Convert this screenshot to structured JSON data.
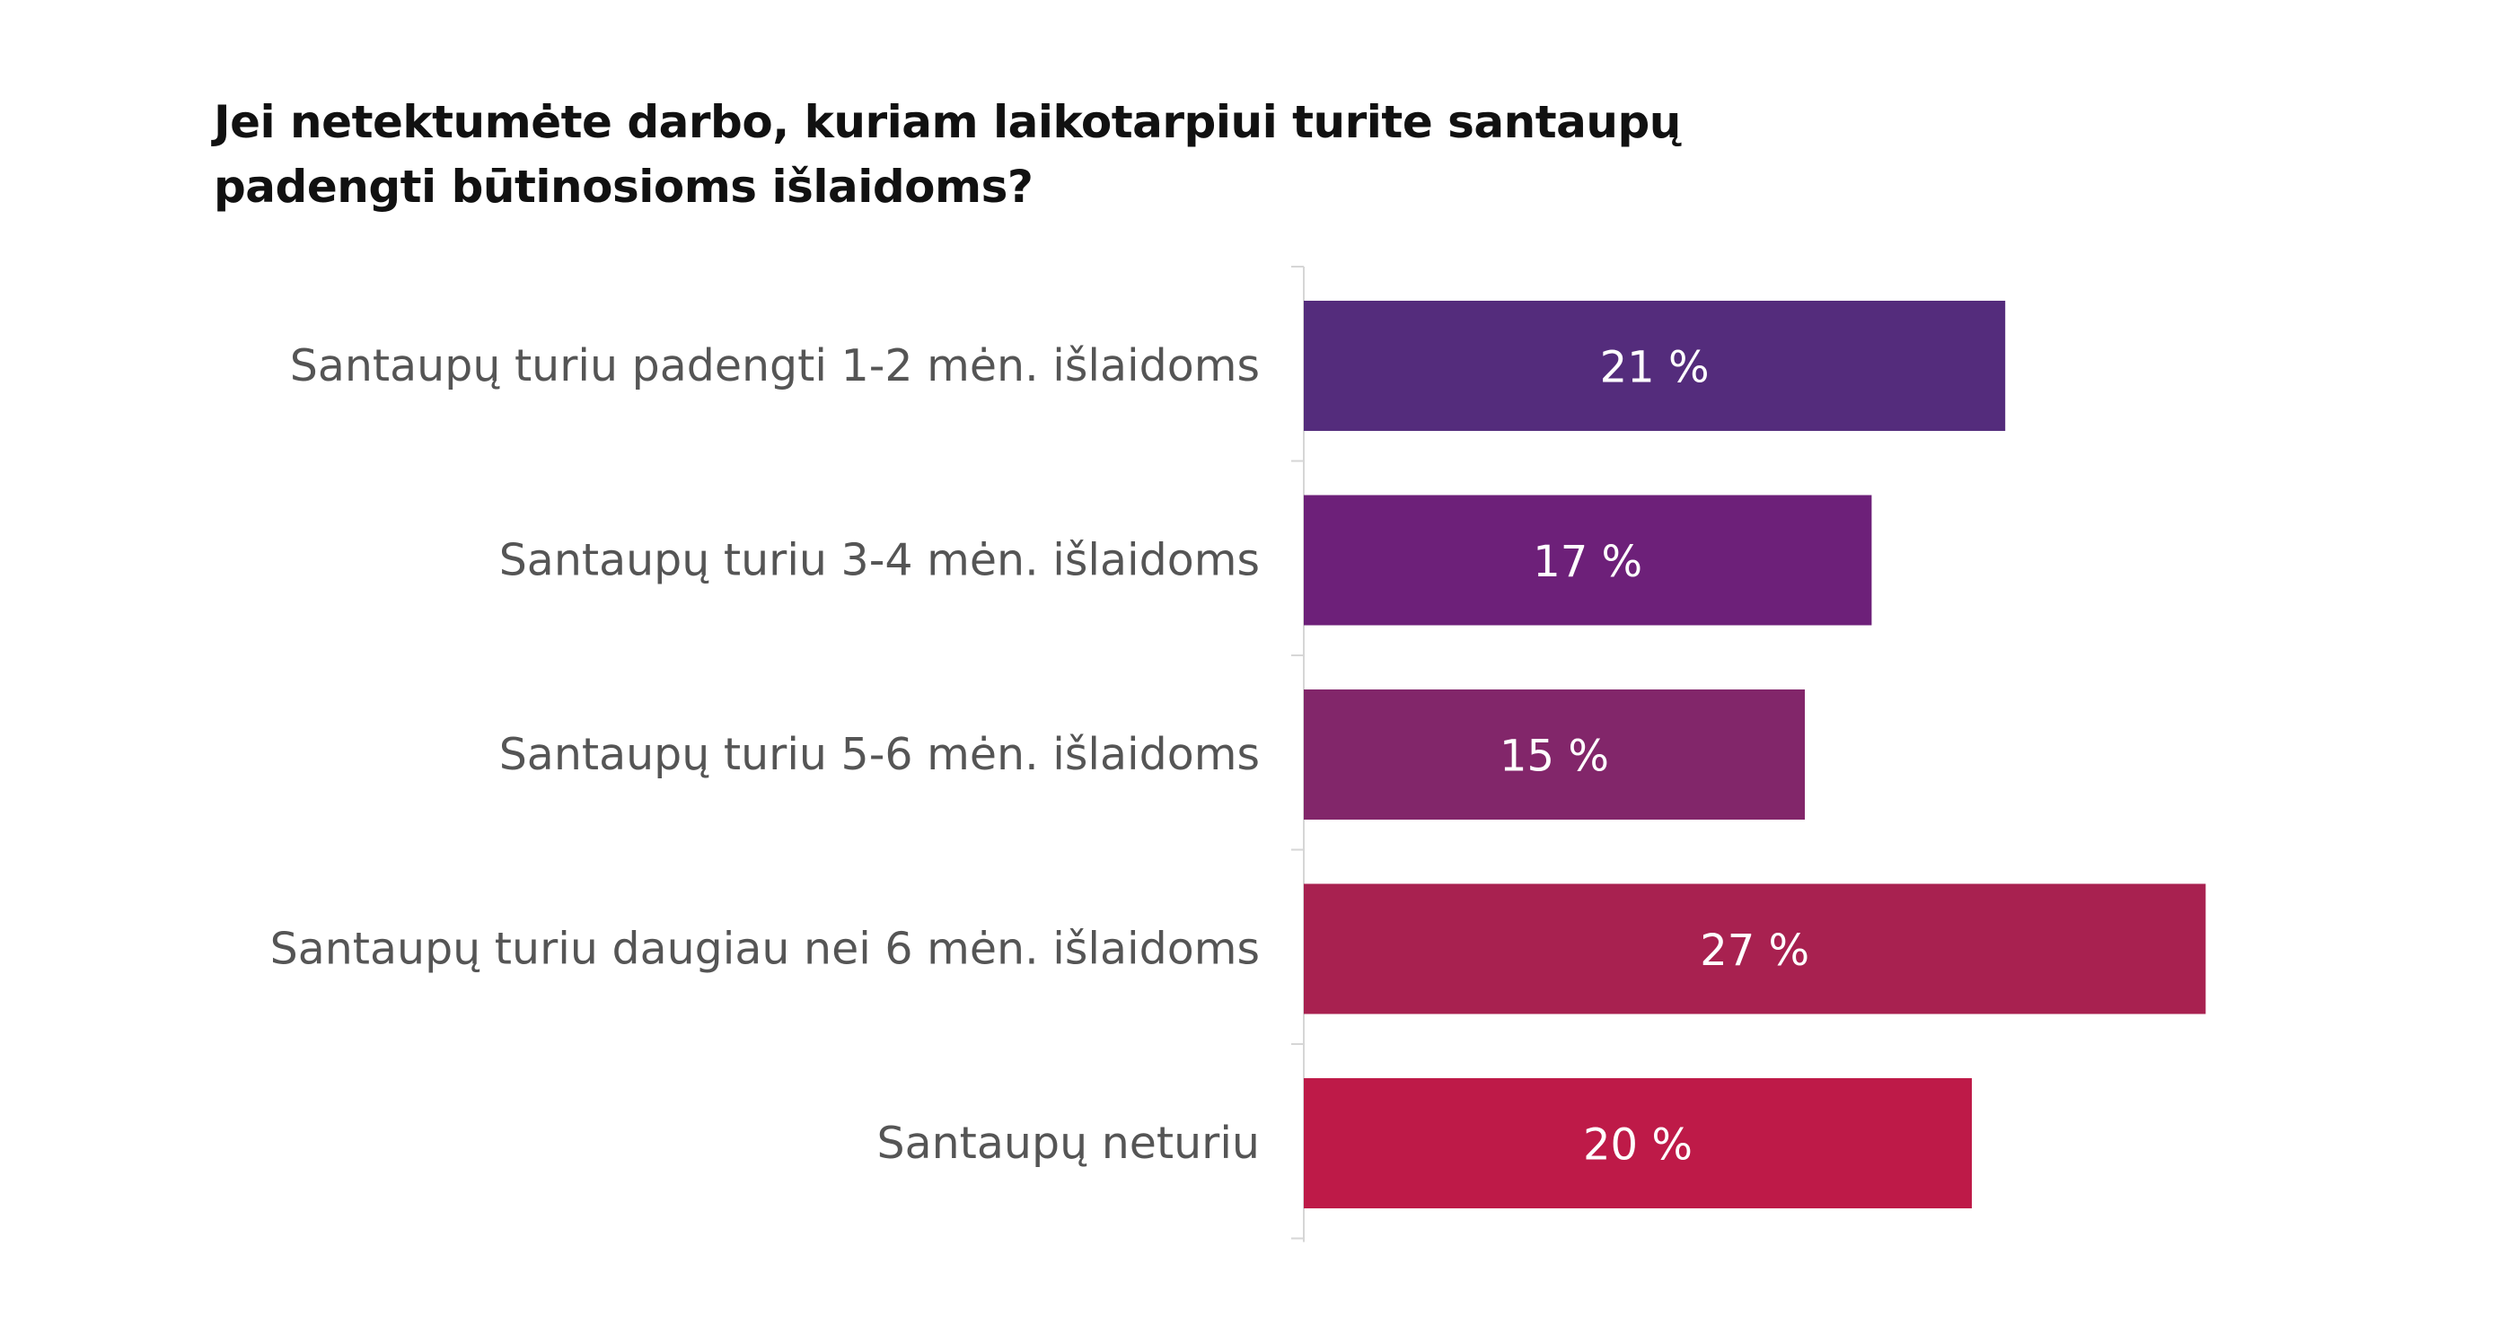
{
  "chart_data": {
    "type": "bar",
    "orientation": "horizontal",
    "title_lines": [
      "Jei netektumėte darbo, kuriam laikotarpiui turite santaupų",
      "padengti būtinosioms išlaidoms?"
    ],
    "categories": [
      "Santaupų turiu padengti 1-2 mėn. išlaidoms",
      "Santaupų turiu 3-4 mėn. išlaidoms",
      "Santaupų turiu 5-6 mėn. išlaidoms",
      "Santaupų turiu daugiau nei 6 mėn. išlaidoms",
      "Santaupų neturiu"
    ],
    "values": [
      21,
      17,
      15,
      27,
      20
    ],
    "value_labels": [
      "21 %",
      "17 %",
      "15 %",
      "27 %",
      "20 %"
    ],
    "colors": [
      "#542c7c",
      "#6d2079",
      "#82266a",
      "#a82150",
      "#be1a48"
    ],
    "xlabel": "",
    "ylabel": "",
    "grid": false,
    "legend": "none"
  }
}
